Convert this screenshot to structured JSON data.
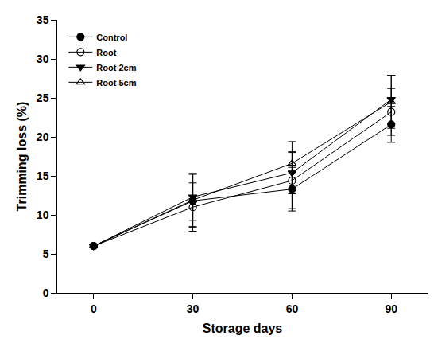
{
  "chart_data": {
    "type": "line",
    "x_label": "Storage days",
    "y_label": "Trimming loss (%)",
    "x": [
      0,
      30,
      60,
      90
    ],
    "xlim": [
      -11,
      101
    ],
    "xticks": [
      0,
      30,
      60,
      90
    ],
    "ylim": [
      0,
      35
    ],
    "yticks": [
      0,
      5,
      10,
      15,
      20,
      25,
      30,
      35
    ],
    "grid": false,
    "legend": "upper left",
    "series": [
      {
        "name": "Control",
        "color": "#000000",
        "marker": "circle",
        "line_style": "solid",
        "values": [
          6.0,
          11.8,
          13.3,
          21.6
        ],
        "error": [
          0.2,
          3.4,
          2.8,
          2.3
        ]
      },
      {
        "name": "Root",
        "color": "#000000",
        "marker": "circle-open",
        "line_style": "solid",
        "values": [
          6.0,
          11.0,
          14.4,
          23.2
        ],
        "error": [
          0.2,
          3.1,
          3.6,
          3.0
        ]
      },
      {
        "name": "Root 2cm",
        "color": "#000000",
        "marker": "triangle-down",
        "line_style": "solid",
        "values": [
          6.0,
          12.3,
          15.4,
          24.8
        ],
        "error": [
          0.2,
          3.0,
          2.7,
          3.1
        ]
      },
      {
        "name": "Root 5cm",
        "color": "#000000",
        "marker": "triangle-up-open",
        "line_style": "solid",
        "values": [
          6.0,
          11.9,
          16.6,
          24.5
        ],
        "error": [
          0.2,
          3.4,
          2.8,
          3.4
        ]
      }
    ]
  }
}
